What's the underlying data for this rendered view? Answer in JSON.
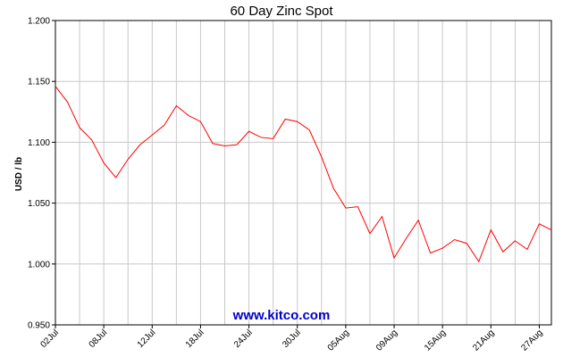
{
  "chart_data": {
    "type": "line",
    "title": "60 Day Zinc Spot",
    "xlabel": "",
    "ylabel": "USD / lb",
    "ylim": [
      0.95,
      1.2
    ],
    "yticks": [
      "1.200",
      "1.150",
      "1.100",
      "1.050",
      "1.000",
      "0.950"
    ],
    "yticks_values": [
      1.2,
      1.15,
      1.1,
      1.05,
      1.0,
      0.95
    ],
    "xticks": [
      {
        "label": "02Jul",
        "index": 0
      },
      {
        "label": "08Jul",
        "index": 4
      },
      {
        "label": "12Jul",
        "index": 8
      },
      {
        "label": "18Jul",
        "index": 12
      },
      {
        "label": "24Jul",
        "index": 16
      },
      {
        "label": "30Jul",
        "index": 20
      },
      {
        "label": "05Aug",
        "index": 24
      },
      {
        "label": "09Aug",
        "index": 28
      },
      {
        "label": "15Aug",
        "index": 32
      },
      {
        "label": "21Aug",
        "index": 36
      },
      {
        "label": "27Aug",
        "index": 40
      }
    ],
    "grid": true,
    "series": [
      {
        "color": "#ff0000",
        "values": [
          1.146,
          1.133,
          1.112,
          1.102,
          1.083,
          1.071,
          1.086,
          1.098,
          1.106,
          1.114,
          1.13,
          1.122,
          1.117,
          1.099,
          1.097,
          1.098,
          1.109,
          1.104,
          1.103,
          1.119,
          1.117,
          1.11,
          1.088,
          1.062,
          1.046,
          1.047,
          1.025,
          1.039,
          1.005,
          1.021,
          1.036,
          1.009,
          1.013,
          1.02,
          1.017,
          1.002,
          1.028,
          1.01,
          1.019,
          1.012,
          1.033,
          1.028
        ]
      }
    ]
  },
  "watermark": {
    "text": "www.kitco.com",
    "color": "#0000cc"
  }
}
